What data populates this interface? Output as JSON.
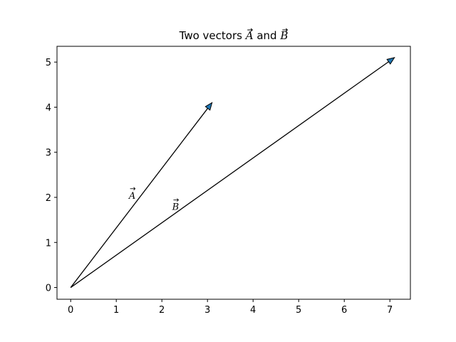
{
  "chart_data": {
    "type": "vector",
    "title": "Two vectors A⃗ and B⃗",
    "title_parts": {
      "prefix": "Two vectors ",
      "sym_a": "A",
      "joiner": " and ",
      "sym_b": "B"
    },
    "xlabel": "",
    "ylabel": "",
    "xlim": [
      -0.3,
      7.45
    ],
    "ylim": [
      -0.26,
      5.35
    ],
    "xticks": [
      0,
      1,
      2,
      3,
      4,
      5,
      6,
      7
    ],
    "yticks": [
      0,
      1,
      2,
      3,
      4,
      5
    ],
    "grid": false,
    "series": [
      {
        "name": "A",
        "x0": 0,
        "y0": 0,
        "x1": 3.1,
        "y1": 4.1,
        "label_x": 1.35,
        "label_y": 2.05,
        "color": "#1f77b4"
      },
      {
        "name": "B",
        "x0": 0,
        "y0": 0,
        "x1": 7.1,
        "y1": 5.1,
        "label_x": 2.3,
        "label_y": 1.8,
        "color": "#1f77b4"
      }
    ]
  }
}
